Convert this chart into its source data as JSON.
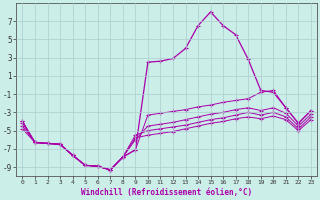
{
  "xlabel": "Windchill (Refroidissement éolien,°C)",
  "background_color": "#cceee8",
  "grid_color": "#aacccc",
  "line_color": "#aa00aa",
  "x_hours": [
    0,
    1,
    2,
    3,
    4,
    5,
    6,
    7,
    8,
    9,
    10,
    11,
    12,
    13,
    14,
    15,
    16,
    17,
    18,
    19,
    20,
    21,
    22,
    23
  ],
  "y_main": [
    -4.0,
    -6.3,
    -6.4,
    -6.5,
    -7.7,
    -8.8,
    -8.9,
    -9.3,
    -7.9,
    -7.1,
    2.5,
    2.6,
    2.9,
    4.0,
    6.5,
    8.0,
    6.5,
    5.5,
    2.8,
    -0.6,
    -0.8,
    -2.5,
    -4.2,
    -2.8
  ],
  "y_line2": [
    -4.0,
    -6.3,
    -6.4,
    -6.5,
    -7.7,
    -8.8,
    -8.9,
    -9.3,
    -7.9,
    -7.1,
    -3.3,
    -3.1,
    -2.9,
    -2.7,
    -2.4,
    -2.2,
    -1.9,
    -1.7,
    -1.5,
    -0.8,
    -0.6,
    -2.5,
    -4.2,
    -2.8
  ],
  "y_line3": [
    -4.2,
    -6.3,
    -6.4,
    -6.5,
    -7.7,
    -8.8,
    -8.9,
    -9.3,
    -7.9,
    -6.0,
    -4.5,
    -4.3,
    -4.1,
    -3.8,
    -3.5,
    -3.2,
    -3.0,
    -2.7,
    -2.5,
    -2.8,
    -2.5,
    -3.1,
    -4.5,
    -3.2
  ],
  "y_line4": [
    -4.5,
    -6.3,
    -6.4,
    -6.5,
    -7.7,
    -8.8,
    -8.9,
    -9.3,
    -7.9,
    -5.5,
    -5.0,
    -4.8,
    -4.6,
    -4.4,
    -4.1,
    -3.8,
    -3.6,
    -3.3,
    -3.0,
    -3.3,
    -3.0,
    -3.5,
    -4.8,
    -3.5
  ],
  "y_line5": [
    -4.8,
    -6.3,
    -6.4,
    -6.5,
    -7.7,
    -8.8,
    -8.9,
    -9.3,
    -7.9,
    -5.8,
    -5.5,
    -5.3,
    -5.1,
    -4.8,
    -4.5,
    -4.2,
    -4.0,
    -3.7,
    -3.5,
    -3.7,
    -3.4,
    -3.8,
    -5.0,
    -3.8
  ],
  "ylim": [
    -10,
    9
  ],
  "yticks": [
    -9,
    -7,
    -5,
    -3,
    -1,
    1,
    3,
    5,
    7
  ],
  "xlim": [
    -0.5,
    23.5
  ]
}
